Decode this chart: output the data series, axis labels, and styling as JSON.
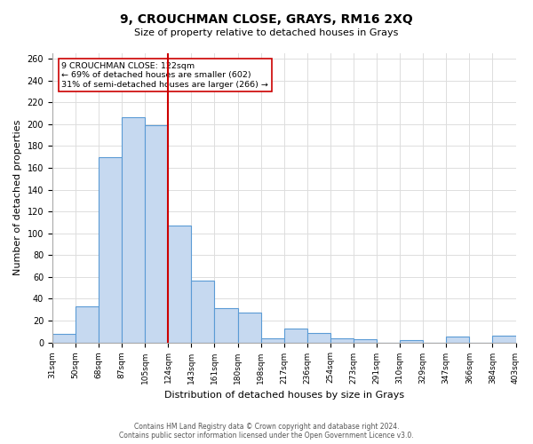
{
  "title": "9, CROUCHMAN CLOSE, GRAYS, RM16 2XQ",
  "subtitle": "Size of property relative to detached houses in Grays",
  "xlabel": "Distribution of detached houses by size in Grays",
  "ylabel": "Number of detached properties",
  "bar_color": "#c6d9f0",
  "bar_edge_color": "#5b9bd5",
  "bin_labels": [
    "31sqm",
    "50sqm",
    "68sqm",
    "87sqm",
    "105sqm",
    "124sqm",
    "143sqm",
    "161sqm",
    "180sqm",
    "198sqm",
    "217sqm",
    "236sqm",
    "254sqm",
    "273sqm",
    "291sqm",
    "310sqm",
    "329sqm",
    "347sqm",
    "366sqm",
    "384sqm",
    "403sqm"
  ],
  "bar_heights": [
    8,
    33,
    170,
    206,
    199,
    107,
    57,
    31,
    27,
    4,
    13,
    9,
    4,
    3,
    0,
    2,
    0,
    5,
    0,
    6
  ],
  "property_line_x": 4.5,
  "line_color": "#cc0000",
  "grid_color": "#dddddd",
  "ylim": [
    0,
    265
  ],
  "yticks": [
    0,
    20,
    40,
    60,
    80,
    100,
    120,
    140,
    160,
    180,
    200,
    220,
    240,
    260
  ],
  "annotation_text_line1": "9 CROUCHMAN CLOSE: 122sqm",
  "annotation_text_line2": "← 69% of detached houses are smaller (602)",
  "annotation_text_line3": "31% of semi-detached houses are larger (266) →",
  "footer_line1": "Contains HM Land Registry data © Crown copyright and database right 2024.",
  "footer_line2": "Contains public sector information licensed under the Open Government Licence v3.0."
}
